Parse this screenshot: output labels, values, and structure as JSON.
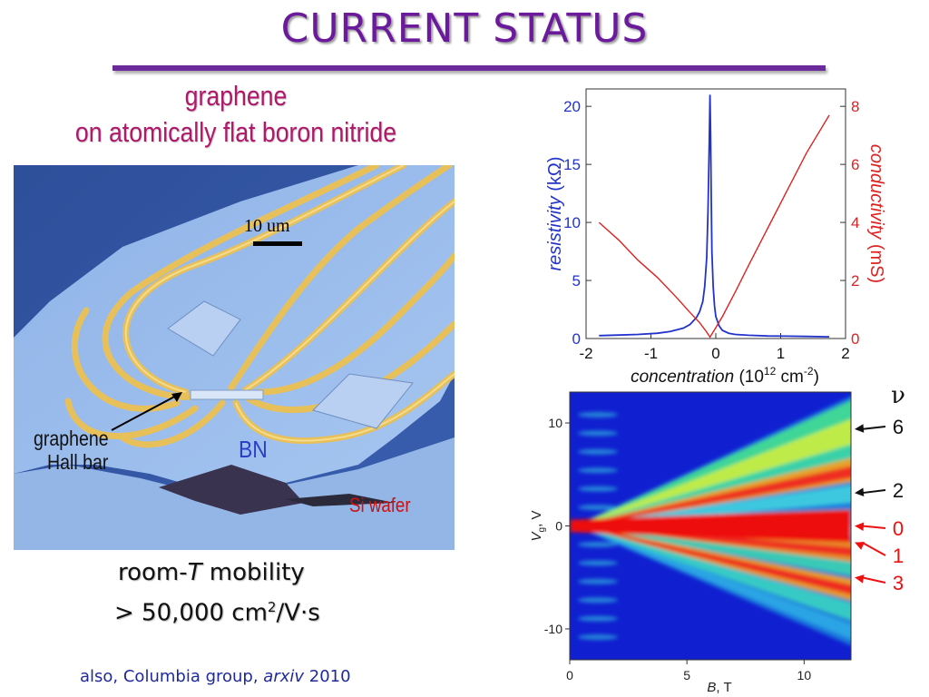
{
  "slide": {
    "title": "CURRENT STATUS",
    "subtitle_line1": "graphene",
    "subtitle_line2": "on atomically flat boron nitride",
    "photo": {
      "scale_label": "10 um",
      "hall_bar_label_line1": "graphene",
      "hall_bar_label_line2": "Hall bar",
      "bn_label": "BN",
      "wafer_label": "Si wafer"
    },
    "mobility_line1_pre": "room-",
    "mobility_line1_italic": "T",
    "mobility_line1_post": " mobility",
    "mobility_line2_pre": "> 50,000 cm",
    "mobility_line2_sup": "2",
    "mobility_line2_post": "/V·s",
    "footnote_pre": "also, Columbia group, ",
    "footnote_italic": "arxiv",
    "footnote_post": " 2010"
  },
  "chart_data": [
    {
      "type": "line",
      "xlabel_italic": "concentration",
      "xlabel_units_pre": " (10",
      "xlabel_units_sup1": "12",
      "xlabel_units_mid": " cm",
      "xlabel_units_sup2": "-2",
      "xlabel_units_post": ")",
      "ylabel_left_italic": "resistivity",
      "ylabel_left_units": "  (kΩ)",
      "ylabel_right_italic": "conductivity",
      "ylabel_right_units": "  (mS)",
      "xlim": [
        -2,
        2
      ],
      "ylim_left": [
        0,
        21.5
      ],
      "ylim_right": [
        0,
        8.6
      ],
      "x_ticks": [
        "-2",
        "-1",
        "0",
        "1",
        "2"
      ],
      "x_tick_values": [
        -2,
        -1,
        0,
        1,
        2
      ],
      "y_ticks_left": [
        "0",
        "5",
        "10",
        "15",
        "20"
      ],
      "y_tick_values_left": [
        0,
        5,
        10,
        15,
        20
      ],
      "y_ticks_right": [
        "0",
        "2",
        "4",
        "6",
        "8"
      ],
      "y_tick_values_right": [
        0,
        2,
        4,
        6,
        8
      ],
      "series": [
        {
          "axis": "left",
          "color": "#2233cc",
          "x": [
            -1.8,
            -1.5,
            -1.2,
            -0.9,
            -0.7,
            -0.5,
            -0.4,
            -0.3,
            -0.25,
            -0.2,
            -0.17,
            -0.14,
            -0.12,
            -0.1,
            -0.09,
            -0.08,
            -0.07,
            -0.06,
            -0.04,
            -0.02,
            0.0,
            0.05,
            0.1,
            0.2,
            0.3,
            0.5,
            0.8,
            1.1,
            1.4,
            1.75
          ],
          "y": [
            0.25,
            0.3,
            0.35,
            0.45,
            0.6,
            0.9,
            1.2,
            1.8,
            2.3,
            3.2,
            4.5,
            7.0,
            11.0,
            17.0,
            21.0,
            17.5,
            12.0,
            7.5,
            4.5,
            2.8,
            1.9,
            1.1,
            0.7,
            0.45,
            0.35,
            0.28,
            0.22,
            0.2,
            0.18,
            0.15
          ]
        },
        {
          "axis": "right",
          "color": "#dd2222",
          "x": [
            -1.8,
            -1.5,
            -1.2,
            -0.9,
            -0.6,
            -0.4,
            -0.25,
            -0.15,
            -0.09,
            -0.02,
            0.1,
            0.3,
            0.5,
            0.8,
            1.1,
            1.4,
            1.75
          ],
          "y": [
            4.0,
            3.4,
            2.7,
            2.1,
            1.4,
            0.9,
            0.55,
            0.25,
            0.05,
            0.3,
            0.75,
            1.6,
            2.5,
            3.8,
            5.1,
            6.4,
            7.7
          ]
        }
      ]
    },
    {
      "type": "heatmap",
      "xlabel_italic": "B",
      "xlabel_post": ", T",
      "ylabel_italic": "V",
      "ylabel_sub": "g",
      "ylabel_post": ", V",
      "xlim": [
        0,
        12
      ],
      "ylim": [
        -13,
        13
      ],
      "x_ticks": [
        "0",
        "5",
        "10"
      ],
      "x_tick_values": [
        0,
        5,
        10
      ],
      "y_ticks": [
        "-10",
        "0",
        "10"
      ],
      "y_tick_values": [
        -10,
        0,
        10
      ],
      "nu_header": "ν",
      "filling_factors": [
        {
          "label": "6",
          "color": "#111111",
          "vg_at_edge": 9.4
        },
        {
          "label": "2",
          "color": "#111111",
          "vg_at_edge": 3.2
        },
        {
          "label": "0",
          "color": "#ee1111",
          "vg_at_edge": 0.0
        },
        {
          "label": "1",
          "color": "#ee1111",
          "vg_at_edge": -1.6
        },
        {
          "label": "3",
          "color": "#ee1111",
          "vg_at_edge": -5.0
        }
      ]
    }
  ]
}
